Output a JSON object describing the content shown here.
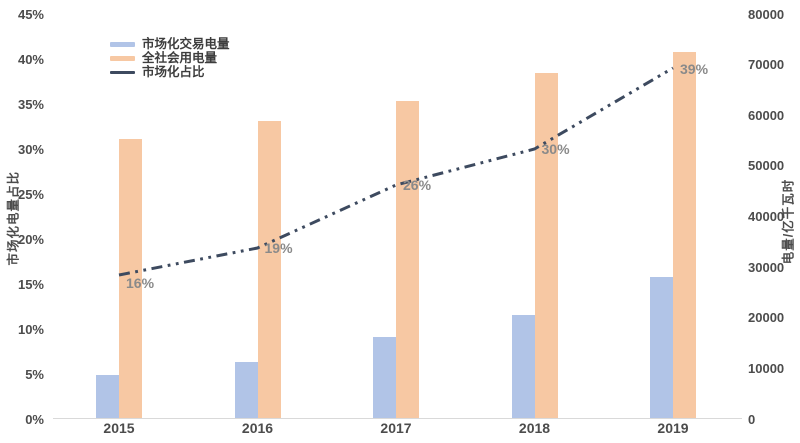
{
  "chart_data": {
    "type": "combo-bar-line",
    "categories": [
      "2015",
      "2016",
      "2017",
      "2018",
      "2019"
    ],
    "series": [
      {
        "name": "市场化交易电量",
        "key": "market-traded-volume",
        "type": "bar",
        "axis": "right",
        "color": "#b1c4e7",
        "values": [
          8700,
          11300,
          16200,
          20500,
          28000
        ]
      },
      {
        "name": "全社会用电量",
        "key": "total-society-consumption",
        "type": "bar",
        "axis": "right",
        "color": "#f7c8a3",
        "values": [
          55300,
          58900,
          62800,
          68300,
          72500
        ]
      },
      {
        "name": "市场化占比",
        "key": "marketization-ratio",
        "type": "line",
        "axis": "left",
        "color": "#3d4a5f",
        "values": [
          16,
          19,
          26,
          30,
          39
        ],
        "point_labels": [
          "16%",
          "19%",
          "26%",
          "30%",
          "39%"
        ],
        "label_color": "#8a8a8a"
      }
    ],
    "y_left": {
      "title": "市场化电量占比",
      "min": 0,
      "max": 45,
      "ticks": [
        "0%",
        "5%",
        "10%",
        "15%",
        "20%",
        "25%",
        "30%",
        "35%",
        "40%",
        "45%"
      ]
    },
    "y_right": {
      "title": "电量/亿千瓦时",
      "min": 0,
      "max": 80000,
      "ticks": [
        "0",
        "10000",
        "20000",
        "30000",
        "40000",
        "50000",
        "60000",
        "70000",
        "80000"
      ]
    },
    "legend_position": "top-left",
    "grid": false,
    "background": "#ffffff"
  }
}
